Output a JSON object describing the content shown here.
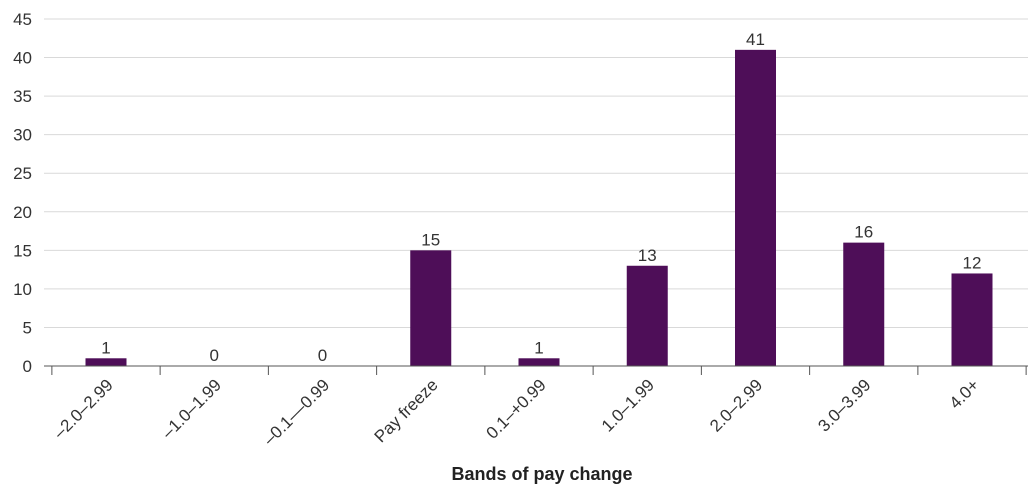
{
  "chart_data": {
    "type": "bar",
    "title": "",
    "xlabel": "Bands of pay change",
    "ylabel": "",
    "categories": [
      "–2.0–2.99",
      "–1.0–1.99",
      "–0.1––0.99",
      "Pay freeze",
      "0.1–+0.99",
      "1.0–1.99",
      "2.0–2.99",
      "3.0–3.99",
      "4.0+"
    ],
    "values": [
      1,
      0,
      0,
      15,
      1,
      13,
      41,
      16,
      12
    ],
    "data_labels": [
      "1",
      "0",
      "0",
      "15",
      "1",
      "13",
      "41",
      "16",
      "12"
    ],
    "ylim": [
      0,
      45
    ],
    "yticks": [
      0,
      5,
      10,
      15,
      20,
      25,
      30,
      35,
      40,
      45
    ],
    "grid": true,
    "legend": "none",
    "colors": {
      "bar": "#4e0e58",
      "grid": "#d9d9d9",
      "axis": "#555555"
    }
  }
}
